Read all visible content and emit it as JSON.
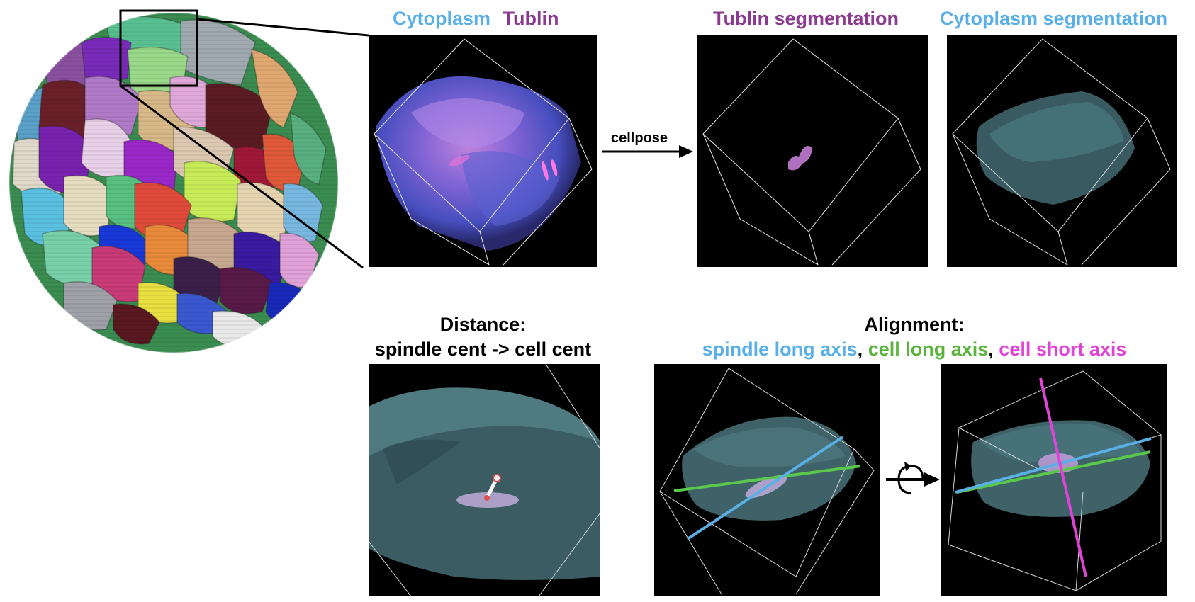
{
  "figure": {
    "top_row": {
      "raw_label_cytoplasm": "Cytoplasm",
      "raw_label_tubulin": "Tublin",
      "arrow_label": "cellpose",
      "tubulin_seg_label": "Tublin segmentation",
      "cyto_seg_label": "Cytoplasm segmentation"
    },
    "bottom_row": {
      "distance_title": "Distance:",
      "distance_subtitle": "spindle cent -> cell cent",
      "alignment_title": "Alignment:",
      "legend_spindle": "spindle long axis",
      "legend_sep1": ",",
      "legend_cell_long": "cell long axis",
      "legend_sep2": ",",
      "legend_cell_short": "cell short axis"
    },
    "colors": {
      "cytoplasm": "#5aafe6",
      "tubulin": "#8a3a8f",
      "cell_long_axis": "#5ab43c",
      "cell_short_axis": "#e044d6",
      "spindle_long_axis": "#5aafe6"
    }
  }
}
